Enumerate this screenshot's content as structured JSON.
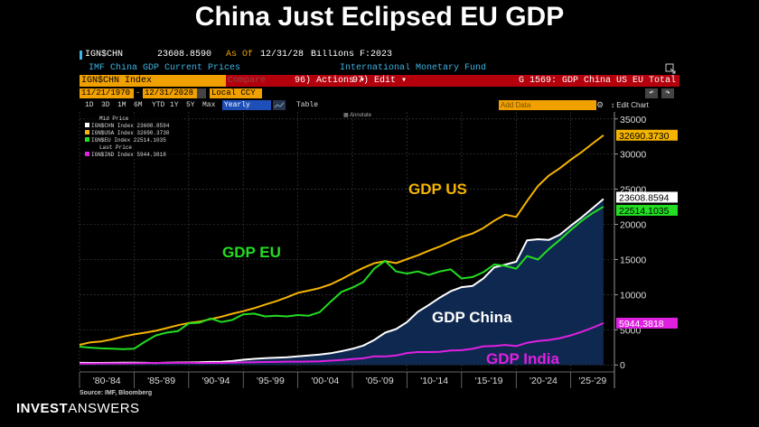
{
  "headline": "China Just Eclipsed EU GDP",
  "terminal": {
    "ticker": "IGN$CHN",
    "last_value": "23608.8590",
    "as_of_label": "As Of",
    "as_of_date": "12/31/28",
    "units": "Billions F:2023",
    "description": "IMF China GDP Current Prices",
    "source_name": "International Monetary Fund",
    "security_field": "IGN$CHN Index",
    "compare_label": "Compare",
    "actions_menu": "96) Actions ▾",
    "edit_menu": "97) Edit ▾",
    "chart_title": "G 1569: GDP China US EU Total",
    "start_date": "11/21/1970",
    "end_date": "12/31/2028",
    "currency": "Local CCY",
    "ranges": [
      "1D",
      "3D",
      "1M",
      "6M",
      "YTD",
      "1Y",
      "5Y",
      "Max"
    ],
    "period": "Yearly",
    "table_label": "Table",
    "annotate_label": "Annotate",
    "add_data_placeholder": "Add Data",
    "edit_chart_label": "Edit Chart",
    "icons": [
      "expand-icon",
      "undo-icon",
      "redo-icon",
      "gear-icon"
    ]
  },
  "legend": {
    "mid_price_label": "Mid Price",
    "last_price_label": "Last Price",
    "items": [
      {
        "text": "IGN$CHN Index 23608.8594",
        "color": "#ffffff"
      },
      {
        "text": "IGN$USA Index 32690.3730",
        "color": "#f5b400"
      },
      {
        "text": "IGN$EU Index  22514.1035",
        "color": "#22dd22"
      },
      {
        "text": "IGN$IND Index 5944.3818",
        "color": "#e020e0"
      }
    ]
  },
  "annotations": {
    "us": "GDP US",
    "eu": "GDP EU",
    "china": "GDP China",
    "india": "GDP India"
  },
  "footer": {
    "source": "Source: IMF, Bloomberg",
    "brand_bold": "INVEST",
    "brand_light": "ANSWERS"
  },
  "colors": {
    "china": "#ffffff",
    "us": "#f5b400",
    "eu": "#22dd22",
    "india": "#e020e0",
    "china_fill": "#0f2850",
    "terminal_red": "#b4000c",
    "terminal_amber": "#f0a000"
  },
  "chart_data": {
    "type": "line",
    "title": "",
    "xlabel": "",
    "ylabel": "",
    "x": [
      1980,
      1981,
      1982,
      1983,
      1984,
      1985,
      1986,
      1987,
      1988,
      1989,
      1990,
      1991,
      1992,
      1993,
      1994,
      1995,
      1996,
      1997,
      1998,
      1999,
      2000,
      2001,
      2002,
      2003,
      2004,
      2005,
      2006,
      2007,
      2008,
      2009,
      2010,
      2011,
      2012,
      2013,
      2014,
      2015,
      2016,
      2017,
      2018,
      2019,
      2020,
      2021,
      2022,
      2023,
      2024,
      2025,
      2026,
      2027,
      2028
    ],
    "xlim": [
      1980,
      2029
    ],
    "ylim": [
      -1000,
      36000
    ],
    "y_ticks": [
      0,
      5000,
      10000,
      15000,
      20000,
      25000,
      30000,
      35000
    ],
    "x_tick_labels": [
      "'80-'84",
      "'85-'89",
      "'90-'94",
      "'95-'99",
      "'00-'04",
      "'05-'09",
      "'10-'14",
      "'15-'19",
      "'20-'24",
      "'25-'29"
    ],
    "last_value_labels": [
      {
        "series": "IGN$USA Index",
        "value": "32690.3730"
      },
      {
        "series": "IGN$CHN Index",
        "value": "23608.8594"
      },
      {
        "series": "IGN$EU Index",
        "value": "22514.1035"
      },
      {
        "series": "IGN$IND Index",
        "value": "5944.3818"
      }
    ],
    "series": [
      {
        "name": "IGN$CHN Index",
        "key": "china",
        "fill": true,
        "values": [
          300,
          290,
          280,
          300,
          310,
          310,
          300,
          270,
          310,
          350,
          360,
          380,
          430,
          440,
          560,
          730,
          860,
          960,
          1030,
          1090,
          1210,
          1340,
          1470,
          1660,
          1960,
          2290,
          2750,
          3550,
          4590,
          5100,
          6090,
          7550,
          8530,
          9570,
          10480,
          11060,
          11230,
          12310,
          13890,
          14280,
          14690,
          17730,
          17880,
          17790,
          18530,
          19800,
          21000,
          22300,
          23608.86
        ]
      },
      {
        "name": "IGN$USA Index",
        "key": "us",
        "values": [
          2860,
          3210,
          3340,
          3640,
          4040,
          4340,
          4590,
          4860,
          5240,
          5640,
          5960,
          6160,
          6520,
          6860,
          7290,
          7640,
          8070,
          8580,
          9060,
          9630,
          10250,
          10580,
          10940,
          11460,
          12210,
          13040,
          13810,
          14470,
          14770,
          14480,
          15050,
          15600,
          16250,
          16840,
          17550,
          18210,
          18700,
          19480,
          20530,
          21380,
          21060,
          23320,
          25460,
          26950,
          28000,
          29200,
          30300,
          31500,
          32690.37
        ]
      },
      {
        "name": "IGN$EU Index",
        "key": "eu",
        "values": [
          2600,
          2450,
          2350,
          2300,
          2250,
          2300,
          3300,
          4200,
          4600,
          4800,
          5900,
          6000,
          6600,
          6100,
          6400,
          7200,
          7300,
          6900,
          7000,
          6900,
          7100,
          7000,
          7500,
          9000,
          10400,
          11000,
          11800,
          13700,
          14800,
          13300,
          13000,
          13300,
          12800,
          13300,
          13600,
          12300,
          12500,
          13200,
          14300,
          14100,
          13700,
          15500,
          15000,
          16500,
          17800,
          19200,
          20500,
          21600,
          22514.1
        ]
      },
      {
        "name": "IGN$IND Index",
        "key": "india",
        "values": [
          190,
          200,
          205,
          220,
          215,
          235,
          250,
          280,
          300,
          300,
          320,
          270,
          290,
          280,
          330,
          360,
          390,
          410,
          420,
          460,
          470,
          480,
          510,
          600,
          700,
          820,
          940,
          1220,
          1200,
          1340,
          1680,
          1820,
          1830,
          1860,
          2040,
          2100,
          2290,
          2650,
          2700,
          2840,
          2670,
          3150,
          3390,
          3550,
          3800,
          4200,
          4700,
          5300,
          5944.38
        ]
      }
    ]
  }
}
